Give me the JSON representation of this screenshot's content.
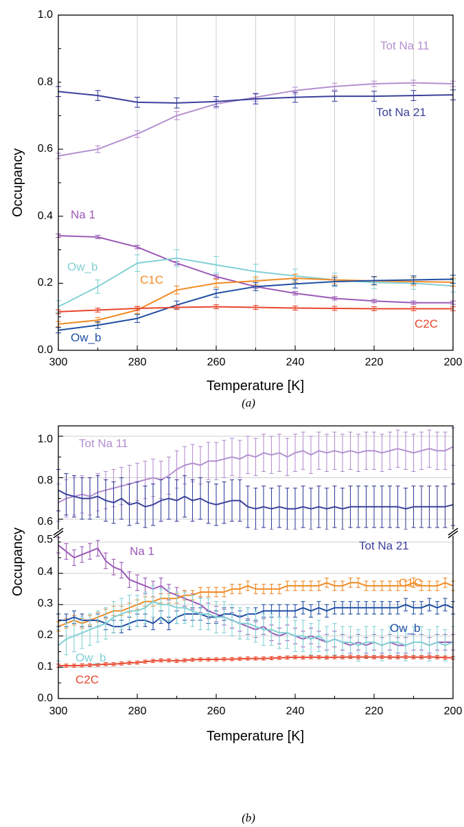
{
  "chart_data": [
    {
      "panel": "(a)",
      "type": "line",
      "xlabel": "Temperature [K]",
      "ylabel": "Occupancy",
      "xlim": [
        300,
        200
      ],
      "ylim": [
        0.0,
        1.0
      ],
      "x_ticks": [
        "300",
        "280",
        "260",
        "240",
        "220",
        "200"
      ],
      "y_ticks": [
        "0.0",
        "0.2",
        "0.4",
        "0.6",
        "0.8",
        "1.0"
      ],
      "grid": "vertical",
      "series": [
        {
          "name": "Tot Na 11",
          "color": "#b48fd0",
          "x": [
            300,
            290,
            280,
            270,
            260,
            250,
            240,
            230,
            220,
            210,
            200
          ],
          "y": [
            0.58,
            0.6,
            0.645,
            0.7,
            0.735,
            0.755,
            0.775,
            0.787,
            0.795,
            0.798,
            0.795
          ],
          "err": [
            0.008,
            0.01,
            0.01,
            0.012,
            0.012,
            0.012,
            0.01,
            0.01,
            0.008,
            0.008,
            0.008
          ]
        },
        {
          "name": "Tot Na 21",
          "color": "#3a3f9b",
          "x": [
            300,
            290,
            280,
            270,
            260,
            250,
            240,
            230,
            220,
            210,
            200
          ],
          "y": [
            0.772,
            0.76,
            0.74,
            0.738,
            0.742,
            0.75,
            0.755,
            0.758,
            0.758,
            0.76,
            0.762
          ],
          "err": [
            0.015,
            0.015,
            0.015,
            0.015,
            0.015,
            0.015,
            0.015,
            0.015,
            0.015,
            0.015,
            0.015
          ]
        },
        {
          "name": "Na 1",
          "color": "#9b59b6",
          "x": [
            300,
            290,
            280,
            270,
            260,
            250,
            240,
            230,
            220,
            210,
            200
          ],
          "y": [
            0.342,
            0.338,
            0.308,
            0.26,
            0.22,
            0.19,
            0.17,
            0.155,
            0.147,
            0.142,
            0.142
          ],
          "err": [
            0.005,
            0.005,
            0.005,
            0.005,
            0.005,
            0.005,
            0.005,
            0.005,
            0.005,
            0.005,
            0.005
          ]
        },
        {
          "name": "Ow_b",
          "color": "#82d0d4",
          "x": [
            300,
            290,
            280,
            270,
            260,
            250,
            240,
            230,
            220,
            210,
            200
          ],
          "y": [
            0.13,
            0.19,
            0.26,
            0.275,
            0.255,
            0.235,
            0.222,
            0.21,
            0.202,
            0.2,
            0.192
          ],
          "err": [
            0.018,
            0.02,
            0.025,
            0.025,
            0.025,
            0.022,
            0.02,
            0.02,
            0.018,
            0.018,
            0.018
          ]
        },
        {
          "name": "C1C",
          "color": "#f08a24",
          "x": [
            300,
            290,
            280,
            270,
            260,
            250,
            240,
            230,
            220,
            210,
            200
          ],
          "y": [
            0.078,
            0.09,
            0.12,
            0.18,
            0.2,
            0.207,
            0.215,
            0.21,
            0.207,
            0.205,
            0.203
          ],
          "err": [
            0.008,
            0.008,
            0.01,
            0.012,
            0.012,
            0.012,
            0.012,
            0.012,
            0.012,
            0.012,
            0.012
          ]
        },
        {
          "name": "Ow_b",
          "color": "#1f4ea3",
          "x": [
            300,
            290,
            280,
            270,
            260,
            250,
            240,
            230,
            220,
            210,
            200
          ],
          "y": [
            0.06,
            0.075,
            0.095,
            0.135,
            0.17,
            0.19,
            0.198,
            0.205,
            0.208,
            0.21,
            0.212
          ],
          "err": [
            0.008,
            0.01,
            0.012,
            0.012,
            0.012,
            0.012,
            0.012,
            0.012,
            0.012,
            0.012,
            0.012
          ]
        },
        {
          "name": "C2C",
          "color": "#e8452c",
          "x": [
            300,
            290,
            280,
            270,
            260,
            250,
            240,
            230,
            220,
            210,
            200
          ],
          "y": [
            0.115,
            0.12,
            0.125,
            0.128,
            0.13,
            0.128,
            0.126,
            0.125,
            0.124,
            0.124,
            0.124
          ],
          "err": [
            0.006,
            0.006,
            0.006,
            0.006,
            0.006,
            0.006,
            0.006,
            0.006,
            0.006,
            0.006,
            0.006
          ]
        }
      ]
    },
    {
      "panel": "(b)",
      "type": "line",
      "xlabel": "Temperature [K]",
      "ylabel": "Occupancy",
      "xlim": [
        300,
        200
      ],
      "y_break": {
        "lower": [
          0.0,
          0.52
        ],
        "upper": [
          0.55,
          1.05
        ]
      },
      "x_ticks": [
        "300",
        "280",
        "260",
        "240",
        "220",
        "200"
      ],
      "y_ticks_lower": [
        "0.0",
        "0.1",
        "0.2",
        "0.3",
        "0.4",
        "0.5"
      ],
      "y_ticks_upper": [
        "0.6",
        "0.8",
        "1.0"
      ],
      "grid": "horizontal",
      "x": [
        300,
        298,
        296,
        294,
        292,
        290,
        288,
        286,
        284,
        282,
        280,
        278,
        276,
        274,
        272,
        270,
        268,
        266,
        264,
        262,
        260,
        258,
        256,
        254,
        252,
        250,
        248,
        246,
        244,
        242,
        240,
        238,
        236,
        234,
        232,
        230,
        228,
        226,
        224,
        222,
        220,
        218,
        216,
        214,
        212,
        210,
        208,
        206,
        204,
        202,
        200
      ],
      "series": [
        {
          "name": "Tot Na 11",
          "color": "#b48fd0",
          "err": 0.09,
          "y": [
            0.68,
            0.7,
            0.71,
            0.72,
            0.71,
            0.73,
            0.74,
            0.75,
            0.76,
            0.77,
            0.78,
            0.79,
            0.8,
            0.79,
            0.81,
            0.84,
            0.86,
            0.87,
            0.86,
            0.88,
            0.88,
            0.89,
            0.9,
            0.89,
            0.91,
            0.9,
            0.92,
            0.91,
            0.92,
            0.9,
            0.92,
            0.93,
            0.91,
            0.93,
            0.92,
            0.93,
            0.92,
            0.93,
            0.92,
            0.93,
            0.93,
            0.92,
            0.93,
            0.94,
            0.93,
            0.92,
            0.93,
            0.94,
            0.93,
            0.93,
            0.95
          ]
        },
        {
          "name": "Tot Na 21",
          "color": "#3a3f9b",
          "err": 0.1,
          "y": [
            0.74,
            0.72,
            0.71,
            0.7,
            0.7,
            0.71,
            0.69,
            0.68,
            0.7,
            0.67,
            0.68,
            0.66,
            0.67,
            0.69,
            0.7,
            0.69,
            0.71,
            0.69,
            0.7,
            0.68,
            0.67,
            0.68,
            0.69,
            0.69,
            0.66,
            0.65,
            0.66,
            0.65,
            0.66,
            0.65,
            0.65,
            0.66,
            0.65,
            0.66,
            0.65,
            0.66,
            0.65,
            0.66,
            0.66,
            0.66,
            0.66,
            0.66,
            0.66,
            0.66,
            0.65,
            0.66,
            0.66,
            0.66,
            0.66,
            0.66,
            0.67
          ]
        },
        {
          "name": "Na 1",
          "color": "#9b59b6",
          "err": 0.025,
          "y": [
            0.49,
            0.47,
            0.45,
            0.46,
            0.47,
            0.48,
            0.44,
            0.42,
            0.41,
            0.38,
            0.37,
            0.36,
            0.35,
            0.36,
            0.34,
            0.33,
            0.32,
            0.31,
            0.3,
            0.28,
            0.27,
            0.26,
            0.25,
            0.24,
            0.23,
            0.22,
            0.23,
            0.21,
            0.2,
            0.21,
            0.2,
            0.19,
            0.2,
            0.19,
            0.18,
            0.19,
            0.18,
            0.17,
            0.18,
            0.17,
            0.18,
            0.17,
            0.18,
            0.17,
            0.17,
            0.18,
            0.18,
            0.17,
            0.18,
            0.18,
            0.18
          ]
        },
        {
          "name": "C1C",
          "color": "#f08a24",
          "err": 0.015,
          "y": [
            0.23,
            0.24,
            0.25,
            0.24,
            0.25,
            0.26,
            0.27,
            0.28,
            0.28,
            0.29,
            0.3,
            0.31,
            0.31,
            0.32,
            0.32,
            0.32,
            0.33,
            0.33,
            0.34,
            0.34,
            0.34,
            0.34,
            0.35,
            0.35,
            0.36,
            0.35,
            0.35,
            0.35,
            0.35,
            0.36,
            0.36,
            0.36,
            0.36,
            0.36,
            0.37,
            0.36,
            0.36,
            0.37,
            0.37,
            0.36,
            0.36,
            0.36,
            0.36,
            0.36,
            0.36,
            0.37,
            0.36,
            0.36,
            0.36,
            0.37,
            0.36
          ]
        },
        {
          "name": "Ow_b",
          "color": "#1f4ea3",
          "err": 0.02,
          "y": [
            0.25,
            0.25,
            0.26,
            0.25,
            0.25,
            0.25,
            0.24,
            0.23,
            0.23,
            0.24,
            0.25,
            0.25,
            0.24,
            0.26,
            0.24,
            0.26,
            0.27,
            0.27,
            0.27,
            0.26,
            0.26,
            0.27,
            0.27,
            0.26,
            0.27,
            0.27,
            0.28,
            0.28,
            0.28,
            0.28,
            0.28,
            0.29,
            0.28,
            0.29,
            0.28,
            0.29,
            0.29,
            0.29,
            0.29,
            0.29,
            0.29,
            0.29,
            0.29,
            0.29,
            0.3,
            0.29,
            0.29,
            0.3,
            0.29,
            0.3,
            0.29
          ]
        },
        {
          "name": "Ow_b",
          "color": "#82d0d4",
          "err": 0.05,
          "y": [
            0.17,
            0.19,
            0.2,
            0.21,
            0.22,
            0.23,
            0.24,
            0.26,
            0.27,
            0.28,
            0.28,
            0.29,
            0.31,
            0.3,
            0.3,
            0.29,
            0.29,
            0.28,
            0.27,
            0.27,
            0.26,
            0.26,
            0.25,
            0.24,
            0.24,
            0.23,
            0.22,
            0.22,
            0.21,
            0.21,
            0.2,
            0.2,
            0.19,
            0.2,
            0.18,
            0.19,
            0.18,
            0.18,
            0.17,
            0.18,
            0.18,
            0.17,
            0.18,
            0.18,
            0.17,
            0.18,
            0.18,
            0.17,
            0.18,
            0.17,
            0.18
          ]
        },
        {
          "name": "C2C",
          "color": "#e8452c",
          "err": 0.005,
          "y": [
            0.105,
            0.105,
            0.105,
            0.106,
            0.107,
            0.108,
            0.11,
            0.11,
            0.112,
            0.114,
            0.115,
            0.118,
            0.12,
            0.122,
            0.122,
            0.12,
            0.122,
            0.124,
            0.125,
            0.125,
            0.125,
            0.126,
            0.126,
            0.127,
            0.128,
            0.128,
            0.128,
            0.129,
            0.13,
            0.131,
            0.132,
            0.131,
            0.132,
            0.132,
            0.131,
            0.132,
            0.132,
            0.133,
            0.132,
            0.133,
            0.132,
            0.133,
            0.132,
            0.132,
            0.133,
            0.132,
            0.132,
            0.133,
            0.132,
            0.131,
            0.13
          ]
        }
      ]
    }
  ],
  "labels": {
    "a": {
      "tot_na_11": "Tot Na 11",
      "tot_na_21": "Tot Na 21",
      "na_1": "Na 1",
      "ow_b_light": "Ow_b",
      "c1c": "C1C",
      "ow_b_dark": "Ow_b",
      "c2c": "C2C",
      "caption": "(a)"
    },
    "b": {
      "tot_na_11": "Tot Na 11",
      "tot_na_21": "Tot Na 21",
      "na_1": "Na 1",
      "c1c": "C1C",
      "ow_b_dark": "Ow_b",
      "ow_b_light": "Ow_b",
      "c2c": "C2C",
      "caption": "(b)"
    }
  }
}
